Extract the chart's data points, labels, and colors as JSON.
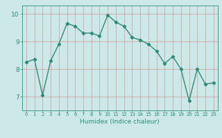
{
  "x": [
    0,
    1,
    2,
    3,
    4,
    5,
    6,
    7,
    8,
    9,
    10,
    11,
    12,
    13,
    14,
    15,
    16,
    17,
    18,
    19,
    20,
    21,
    22,
    23
  ],
  "y": [
    8.25,
    8.35,
    7.05,
    8.3,
    8.9,
    9.65,
    9.55,
    9.3,
    9.3,
    9.2,
    9.95,
    9.7,
    9.55,
    9.15,
    9.05,
    8.9,
    8.65,
    8.2,
    8.45,
    8.0,
    6.85,
    8.0,
    7.45,
    7.5
  ],
  "title": "",
  "xlabel": "Humidex (Indice chaleur)",
  "ylabel": "",
  "xlim": [
    -0.5,
    23.5
  ],
  "ylim": [
    6.5,
    10.3
  ],
  "yticks": [
    7,
    8,
    9,
    10
  ],
  "xticks": [
    0,
    1,
    2,
    3,
    4,
    5,
    6,
    7,
    8,
    9,
    10,
    11,
    12,
    13,
    14,
    15,
    16,
    17,
    18,
    19,
    20,
    21,
    22,
    23
  ],
  "line_color": "#2d8b77",
  "bg_color": "#cce8e8",
  "marker": "D",
  "marker_size": 2.2,
  "line_width": 1.0
}
